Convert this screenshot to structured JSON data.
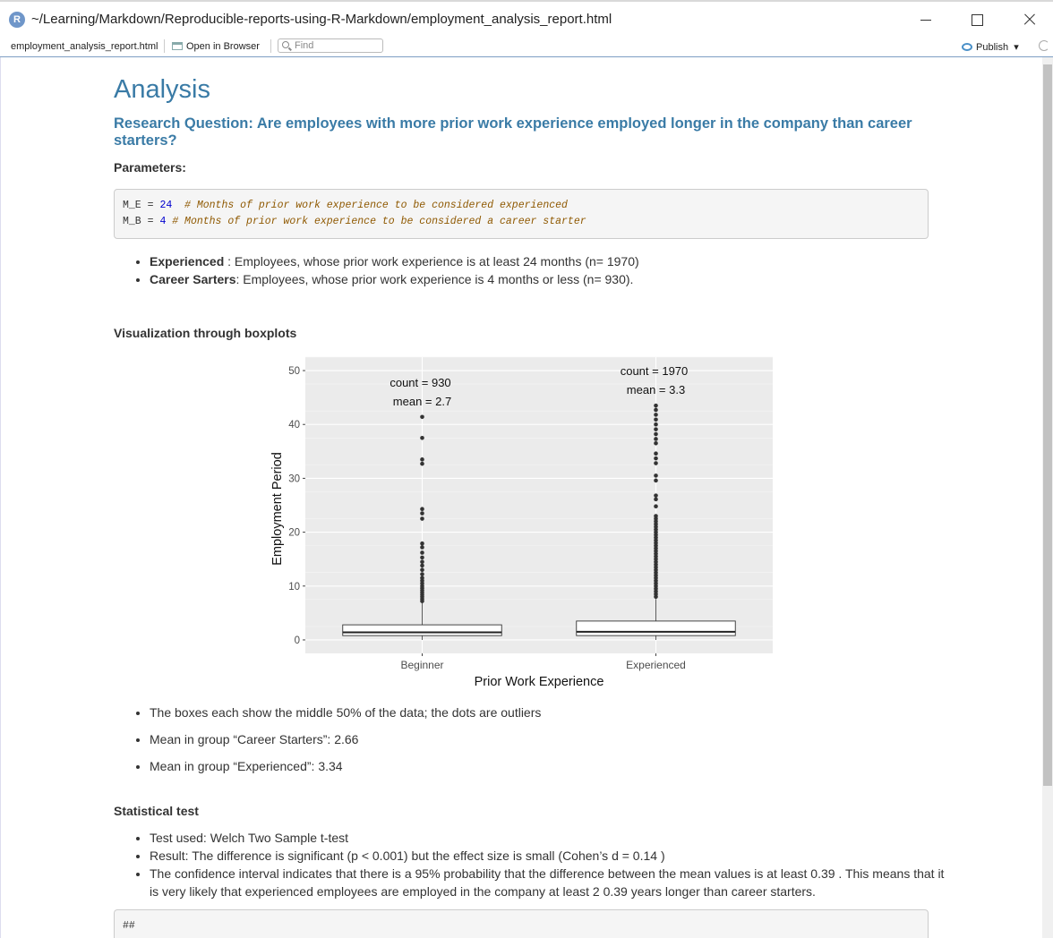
{
  "window": {
    "title": "~/Learning/Markdown/Reproducible-reports-using-R-Markdown/employment_analysis_report.html",
    "logo_letter": "R"
  },
  "toolbar": {
    "file_name": "employment_analysis_report.html",
    "open_in_browser": "Open in Browser",
    "find_placeholder": "Find",
    "publish": "Publish",
    "publish_caret": "▾"
  },
  "doc": {
    "heading": "Analysis",
    "research_question": "Research Question: Are employees with more prior work experience employed longer in the company than career starters?",
    "parameters_label": "Parameters:",
    "code": {
      "line1_var": "M_E",
      "line1_op": " = ",
      "line1_num": "24",
      "line1_comment": "  # Months of prior work experience to be considered experienced",
      "line2_var": "M_B",
      "line2_op": " = ",
      "line2_num": "4",
      "line2_comment": " # Months of prior work experience to be considered a career starter"
    },
    "definitions": [
      {
        "term": "Experienced",
        "text": " : Employees, whose prior work experience is at least 24 months (n= 1970)"
      },
      {
        "term": "Career Sarters",
        "text": ": Employees, whose prior work experience is 4 months or less (n= 930)."
      }
    ],
    "viz_heading": "Visualization through boxplots",
    "viz_notes": [
      "The boxes each show the middle 50% of the data; the dots are outliers",
      "Mean in group “Career Starters”: 2.66",
      "Mean in group “Experienced”: 3.34"
    ],
    "stat_heading": "Statistical test",
    "stat_notes": [
      "Test used: Welch Two Sample t-test",
      "Result: The difference is significant (p < 0.001) but the effect size is small (Cohen’s d = 0.14 )",
      "The confidence interval indicates that there is a 95% probability that the difference between the mean values is at least 0.39 . This means that it is very likely that experienced employees are employed in the company at least 2 0.39 years longer than career starters."
    ],
    "code2": "##"
  },
  "chart_data": {
    "type": "boxplot",
    "title": "",
    "xlabel": "Prior Work Experience",
    "ylabel": "Employment Period",
    "ylim": [
      -2.5,
      52.5
    ],
    "yticks": [
      0,
      10,
      20,
      30,
      40,
      50
    ],
    "grid": true,
    "categories": [
      "Beginner",
      "Experienced"
    ],
    "boxes": [
      {
        "category": "Beginner",
        "min": 0,
        "q1": 0.8,
        "median": 1.4,
        "q3": 2.8,
        "whisker_high": 6.9,
        "annotation_count": "count = 930",
        "annotation_mean": "mean = 2.7",
        "outliers": [
          7.2,
          7.6,
          8.0,
          8.4,
          8.8,
          9.2,
          9.6,
          10.0,
          10.5,
          11.0,
          11.5,
          12.2,
          13.0,
          13.8,
          14.5,
          15.3,
          16.2,
          17.2,
          17.9,
          22.5,
          23.5,
          24.3,
          32.7,
          33.5,
          37.5,
          41.4
        ]
      },
      {
        "category": "Experienced",
        "min": 0,
        "q1": 0.8,
        "median": 1.5,
        "q3": 3.5,
        "whisker_high": 7.6,
        "annotation_count": "count = 1970",
        "annotation_mean": "mean = 3.3",
        "outliers": [
          8.0,
          8.5,
          9.0,
          9.5,
          10.0,
          10.5,
          11.0,
          11.5,
          12.0,
          12.5,
          13.0,
          13.5,
          14.0,
          14.5,
          15.0,
          15.5,
          16.0,
          16.5,
          17.0,
          17.5,
          18.0,
          18.5,
          19.0,
          19.5,
          20.0,
          20.5,
          21.0,
          21.5,
          22.0,
          22.5,
          23.0,
          24.8,
          26.1,
          26.8,
          29.6,
          30.5,
          32.8,
          33.7,
          34.6,
          36.5,
          37.3,
          38.2,
          39.1,
          40.0,
          40.9,
          41.8,
          42.7,
          43.5
        ]
      }
    ]
  }
}
